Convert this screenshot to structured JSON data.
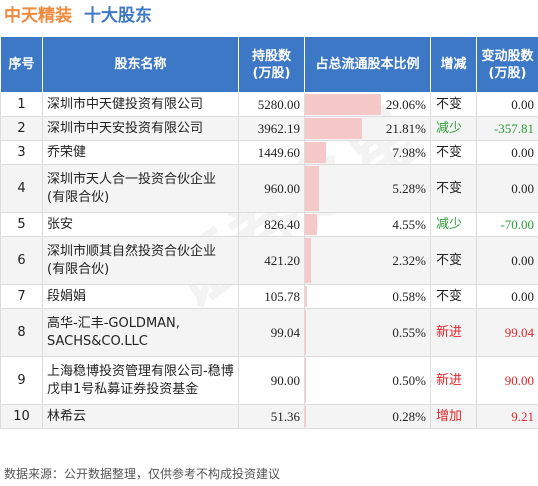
{
  "header": {
    "brand": "中天精装",
    "title": "十大股东"
  },
  "table": {
    "columns": [
      "序号",
      "股东名称",
      "持股数\n(万股)",
      "占总流通股本比例",
      "增减",
      "变动股数\n(万股)"
    ],
    "rows": [
      {
        "idx": "1",
        "name": "深圳市中天健投资有限公司",
        "shares": "5280.00",
        "ratio": "29.06%",
        "ratio_value": 29.06,
        "change_type": "不变",
        "change_class": "same",
        "change": "0.00"
      },
      {
        "idx": "2",
        "name": "深圳市中天安投资有限公司",
        "shares": "3962.19",
        "ratio": "21.81%",
        "ratio_value": 21.81,
        "change_type": "减少",
        "change_class": "dec",
        "change": "-357.81"
      },
      {
        "idx": "3",
        "name": "乔荣健",
        "shares": "1449.60",
        "ratio": "7.98%",
        "ratio_value": 7.98,
        "change_type": "不变",
        "change_class": "same",
        "change": "0.00"
      },
      {
        "idx": "4",
        "name": "深圳市天人合一投资合伙企业(有限合伙)",
        "shares": "960.00",
        "ratio": "5.28%",
        "ratio_value": 5.28,
        "change_type": "不变",
        "change_class": "same",
        "change": "0.00"
      },
      {
        "idx": "5",
        "name": "张安",
        "shares": "826.40",
        "ratio": "4.55%",
        "ratio_value": 4.55,
        "change_type": "减少",
        "change_class": "dec",
        "change": "-70.00"
      },
      {
        "idx": "6",
        "name": "深圳市顺其自然投资合伙企业(有限合伙)",
        "shares": "421.20",
        "ratio": "2.32%",
        "ratio_value": 2.32,
        "change_type": "不变",
        "change_class": "same",
        "change": "0.00"
      },
      {
        "idx": "7",
        "name": "段娟娟",
        "shares": "105.78",
        "ratio": "0.58%",
        "ratio_value": 0.58,
        "change_type": "不变",
        "change_class": "same",
        "change": "0.00"
      },
      {
        "idx": "8",
        "name": "高华-汇丰-GOLDMAN, SACHS&CO.LLC",
        "shares": "99.04",
        "ratio": "0.55%",
        "ratio_value": 0.55,
        "change_type": "新进",
        "change_class": "new",
        "change": "99.04"
      },
      {
        "idx": "9",
        "name": "上海稳博投资管理有限公司-稳博戊申1号私募证券投资基金",
        "shares": "90.00",
        "ratio": "0.50%",
        "ratio_value": 0.5,
        "change_type": "新进",
        "change_class": "new",
        "change": "90.00"
      },
      {
        "idx": "10",
        "name": "林希云",
        "shares": "51.36",
        "ratio": "0.28%",
        "ratio_value": 0.28,
        "change_type": "增加",
        "change_class": "inc",
        "change": "9.21"
      }
    ]
  },
  "watermark": "证券之星",
  "footer": "数据来源：公开数据整理，仅供参考不构成投资建议",
  "colors": {
    "brand": "#f08a3c",
    "header_bg": "#3d78c6",
    "bar": "#f6c9c9",
    "decrease": "#2e9c3a",
    "increase": "#e0262a"
  }
}
